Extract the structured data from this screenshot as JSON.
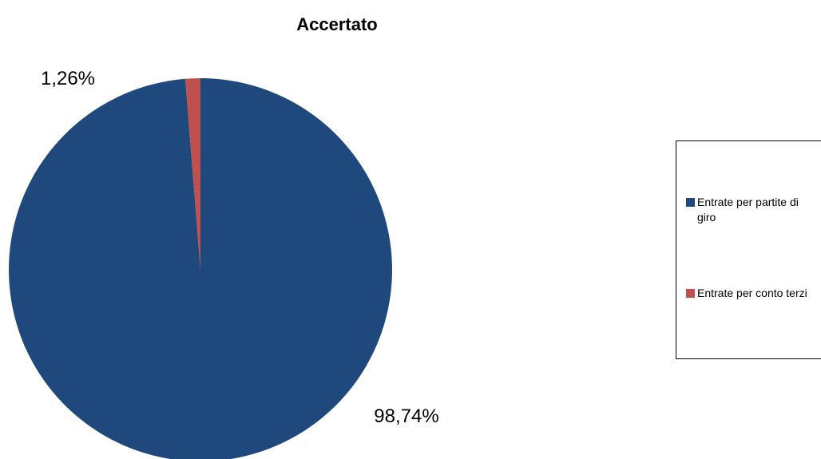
{
  "chart_data": {
    "type": "pie",
    "title": "Accertato",
    "categories": [
      "Entrate per partite di giro",
      "Entrate per conto terzi"
    ],
    "values": [
      98.74,
      1.26
    ],
    "data_labels": [
      "98,74%",
      "1,26%"
    ],
    "legend_lines": [
      [
        "Entrate per partite di",
        "giro"
      ],
      [
        "Entrate per conto terzi"
      ]
    ],
    "colors": [
      "#1F497D",
      "#C0504D"
    ],
    "legend_position": "right"
  }
}
